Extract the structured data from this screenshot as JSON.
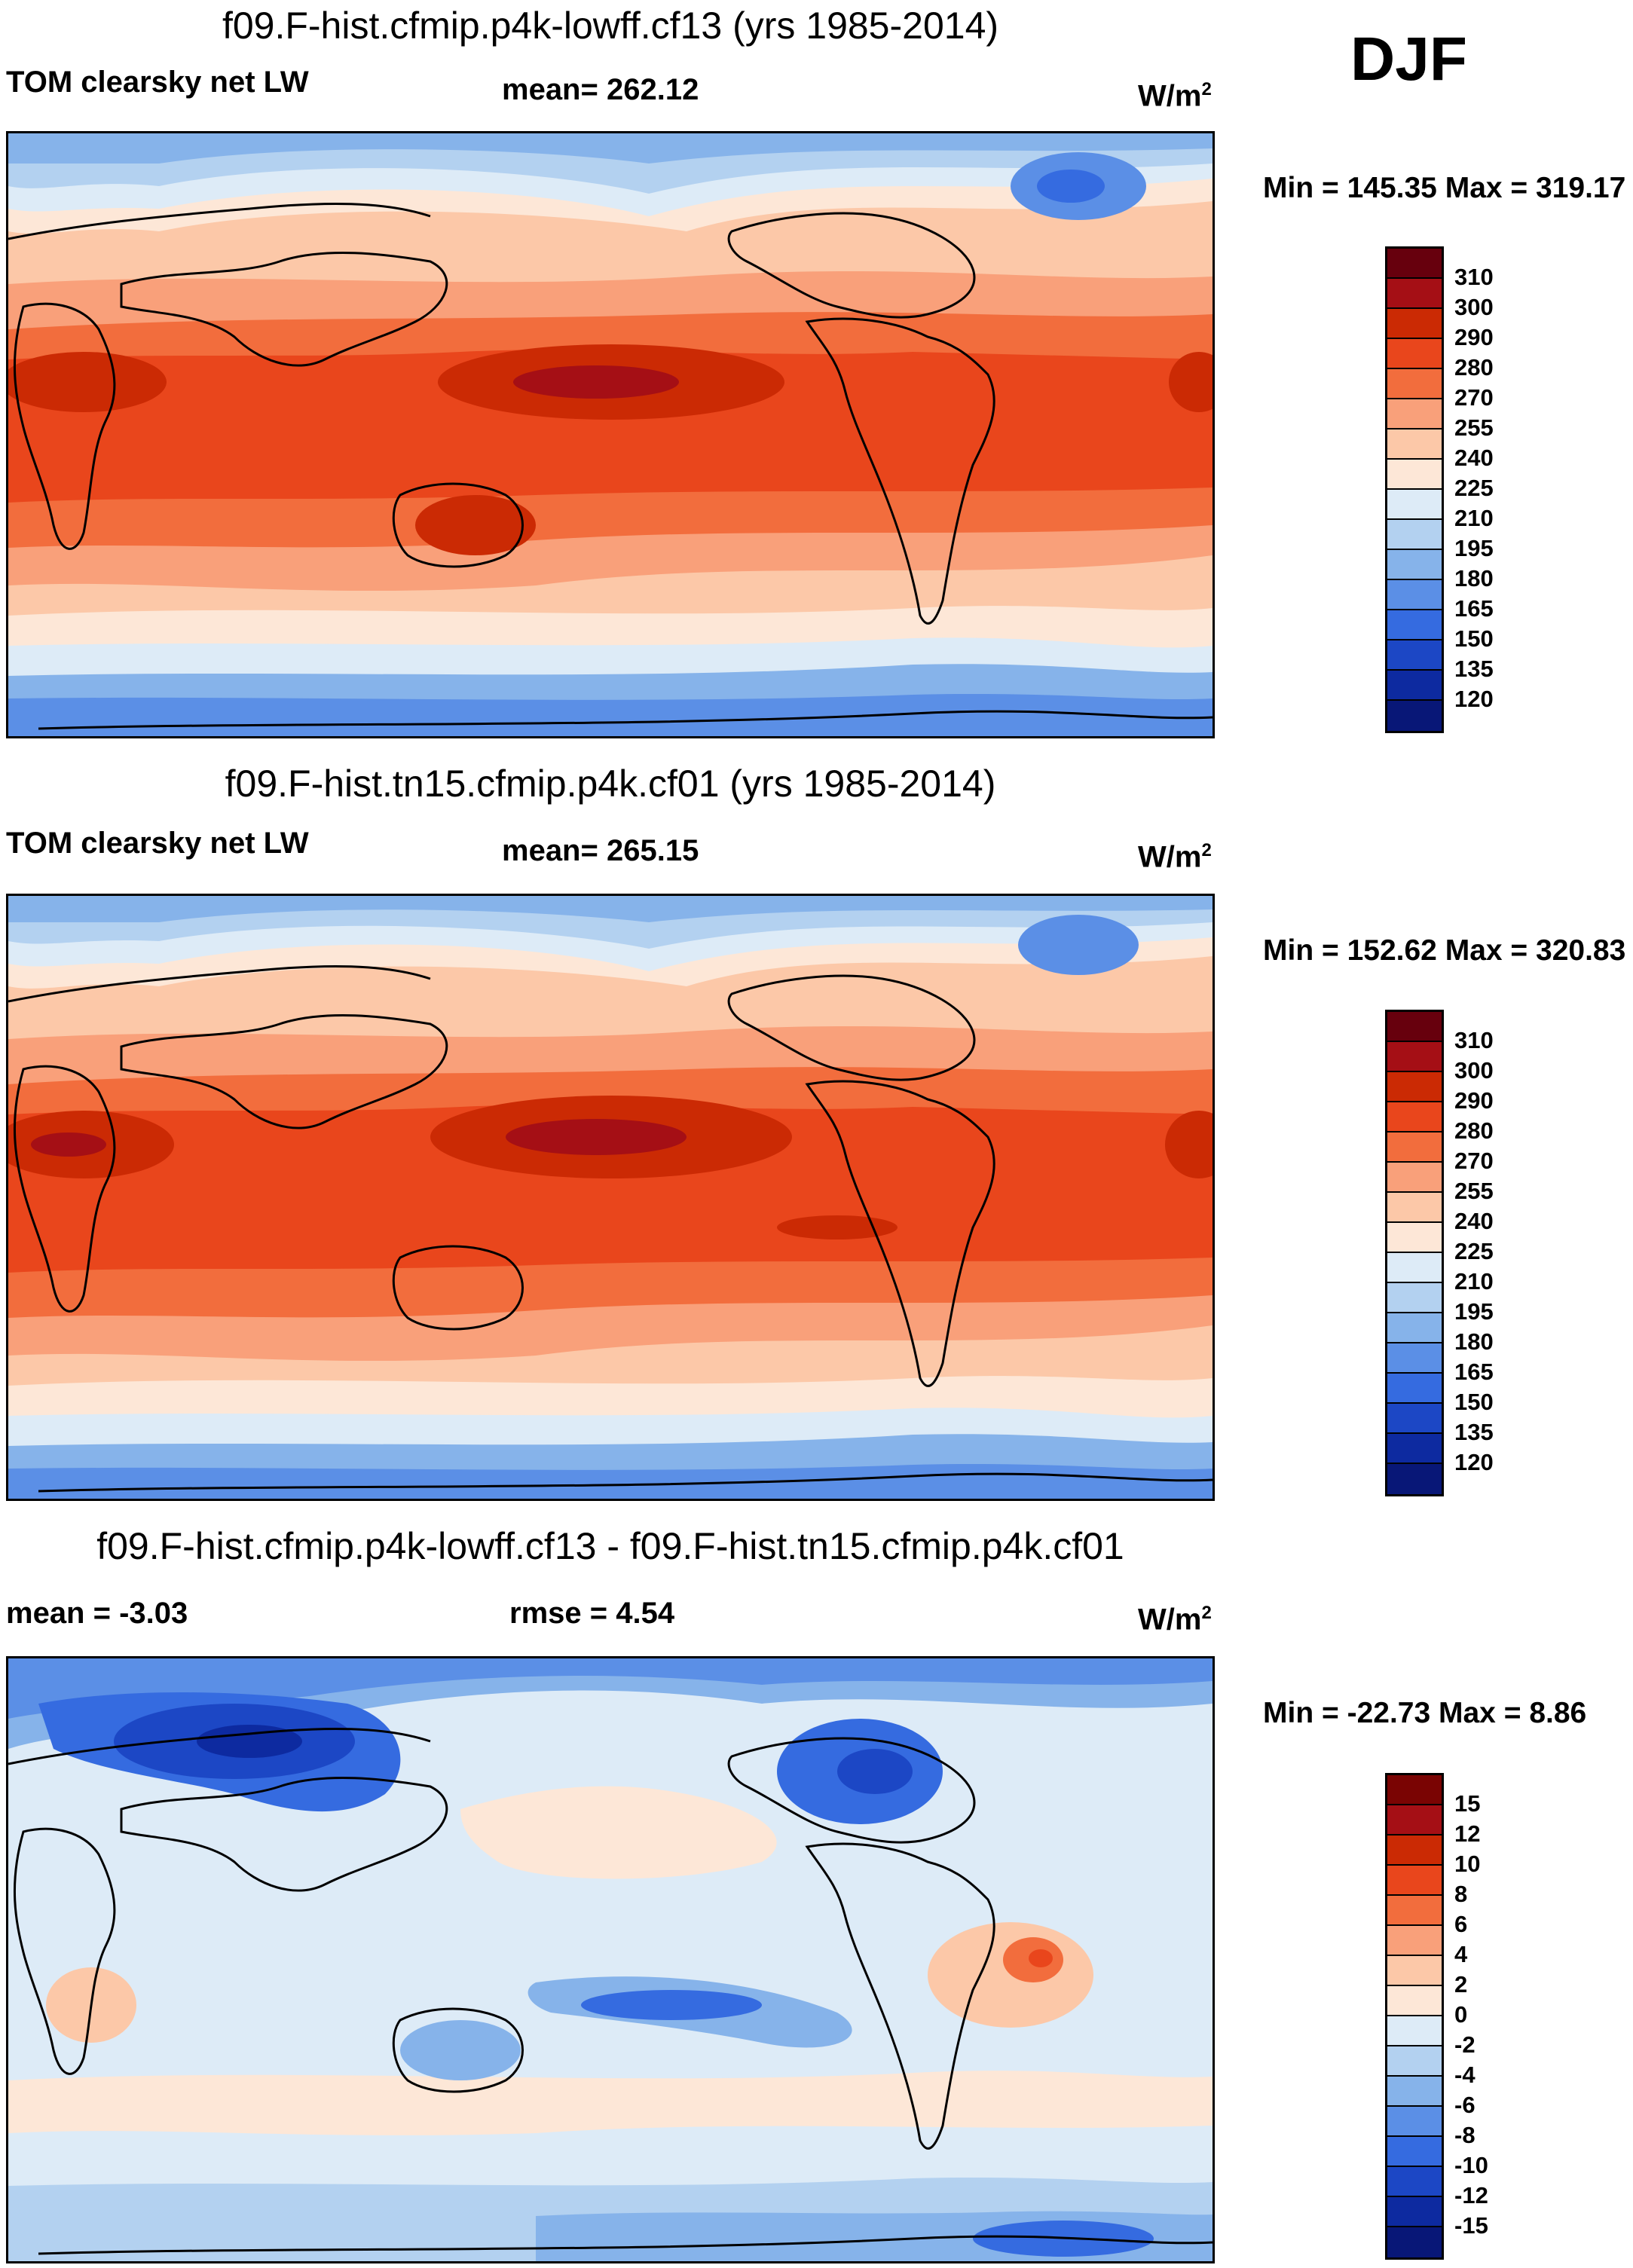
{
  "season": "DJF",
  "panels": [
    {
      "title": "f09.F-hist.cfmip.p4k-lowff.cf13 (yrs 1985-2014)",
      "left_label": "TOM clearsky net LW",
      "center_label": "mean= 262.12",
      "units": "W/m",
      "units_sup": "2",
      "minmax": "Min = 145.35 Max = 319.17",
      "colorbar_labels": [
        "310",
        "300",
        "290",
        "280",
        "270",
        "255",
        "240",
        "225",
        "210",
        "195",
        "180",
        "165",
        "150",
        "135",
        "120"
      ]
    },
    {
      "title": "f09.F-hist.tn15.cfmip.p4k.cf01 (yrs 1985-2014)",
      "left_label": "TOM clearsky net LW",
      "center_label": "mean= 265.15",
      "units": "W/m",
      "units_sup": "2",
      "minmax": "Min = 152.62 Max = 320.83",
      "colorbar_labels": [
        "310",
        "300",
        "290",
        "280",
        "270",
        "255",
        "240",
        "225",
        "210",
        "195",
        "180",
        "165",
        "150",
        "135",
        "120"
      ]
    },
    {
      "title": "f09.F-hist.cfmip.p4k-lowff.cf13 - f09.F-hist.tn15.cfmip.p4k.cf01",
      "left_label": "mean =  -3.03",
      "center_label": "rmse =   4.54",
      "units": "W/m",
      "units_sup": "2",
      "minmax": "Min = -22.73 Max =   8.86",
      "colorbar_labels": [
        "15",
        "12",
        "10",
        "8",
        "6",
        "4",
        "2",
        "0",
        "-2",
        "-4",
        "-6",
        "-8",
        "-10",
        "-12",
        "-15"
      ]
    }
  ],
  "colors": {
    "abs_scale": [
      "#67000d",
      "#a50f15",
      "#cb2a04",
      "#e9461c",
      "#f26d3d",
      "#f9a07a",
      "#fcc8a8",
      "#fde7d7",
      "#ddebf7",
      "#b3d1f0",
      "#86b3ea",
      "#5b8fe6",
      "#356be0",
      "#1c47c5",
      "#0d2aa0",
      "#081777"
    ],
    "diff_scale": [
      "#7a0403",
      "#a50f15",
      "#cb2a04",
      "#e9461c",
      "#f26d3d",
      "#f9a07a",
      "#fcc8a8",
      "#fde7d7",
      "#ddebf7",
      "#b3d1f0",
      "#86b3ea",
      "#5b8fe6",
      "#356be0",
      "#1c47c5",
      "#0d2aa0",
      "#081777"
    ]
  }
}
